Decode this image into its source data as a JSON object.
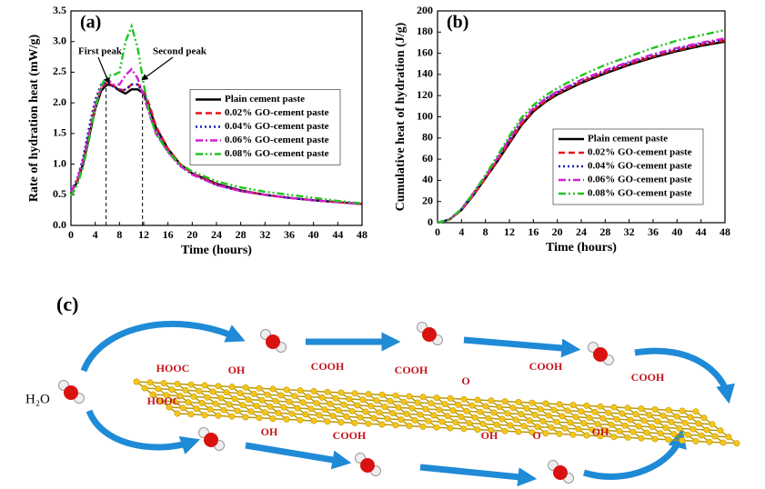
{
  "chart_data": [
    {
      "type": "line",
      "panel": "(a)",
      "ylabel": "Rate of hydration heat (mW/g)",
      "xlabel": "Time (hours)",
      "xlim": [
        0,
        48
      ],
      "xticks": [
        0,
        4,
        8,
        12,
        16,
        20,
        24,
        28,
        32,
        36,
        40,
        44,
        48
      ],
      "ylim": [
        0,
        3.5
      ],
      "yticks": [
        {
          "value": 0,
          "label": "0.0"
        },
        0.5,
        {
          "value": 1,
          "label": "1.0"
        },
        1.5,
        {
          "value": 2,
          "label": "2.0"
        },
        2.5,
        {
          "value": 3,
          "label": "3.0"
        },
        3.5
      ],
      "legend": "center right",
      "annotations": [
        "First peak",
        "Second peak"
      ],
      "vlines": [
        5.8,
        11.8
      ],
      "x": [
        0,
        1,
        2,
        3,
        4,
        5,
        6,
        7,
        8,
        9,
        10,
        11,
        12,
        13,
        14,
        16,
        18,
        20,
        24,
        28,
        32,
        36,
        40,
        44,
        48
      ],
      "series": [
        {
          "name": "Plain cement paste",
          "color": "#000000",
          "style": "solid",
          "values": [
            0.55,
            0.7,
            1.0,
            1.45,
            1.9,
            2.2,
            2.3,
            2.28,
            2.2,
            2.15,
            2.22,
            2.22,
            2.15,
            1.9,
            1.6,
            1.25,
            1.0,
            0.85,
            0.68,
            0.57,
            0.5,
            0.45,
            0.41,
            0.38,
            0.35
          ]
        },
        {
          "name": "0.02% GO-cement paste",
          "color": "#e8141c",
          "style": "dashed",
          "values": [
            0.55,
            0.72,
            1.05,
            1.5,
            1.95,
            2.25,
            2.33,
            2.28,
            2.22,
            2.2,
            2.3,
            2.3,
            2.2,
            1.95,
            1.62,
            1.25,
            1.0,
            0.85,
            0.67,
            0.56,
            0.5,
            0.45,
            0.41,
            0.38,
            0.35
          ]
        },
        {
          "name": "0.04% GO-cement paste",
          "color": "#1c1ca8",
          "style": "dotted",
          "values": [
            0.57,
            0.75,
            1.1,
            1.6,
            2.05,
            2.3,
            2.33,
            2.26,
            2.2,
            2.22,
            2.3,
            2.3,
            2.15,
            1.85,
            1.55,
            1.2,
            0.97,
            0.83,
            0.66,
            0.56,
            0.5,
            0.45,
            0.41,
            0.38,
            0.35
          ]
        },
        {
          "name": "0.06% GO-cement paste",
          "color": "#d21fd2",
          "style": "dashdot",
          "values": [
            0.55,
            0.72,
            1.05,
            1.5,
            1.95,
            2.25,
            2.38,
            2.3,
            2.3,
            2.45,
            2.55,
            2.4,
            2.1,
            1.8,
            1.5,
            1.2,
            0.97,
            0.83,
            0.66,
            0.56,
            0.5,
            0.45,
            0.41,
            0.38,
            0.35
          ]
        },
        {
          "name": "0.08% GO-cement paste",
          "color": "#22c422",
          "style": "dashdotdot",
          "values": [
            0.48,
            0.65,
            0.95,
            1.4,
            1.9,
            2.28,
            2.45,
            2.45,
            2.5,
            3.0,
            3.25,
            2.9,
            2.3,
            1.8,
            1.5,
            1.2,
            1.0,
            0.88,
            0.72,
            0.62,
            0.55,
            0.5,
            0.45,
            0.4,
            0.36
          ]
        }
      ]
    },
    {
      "type": "line",
      "panel": "(b)",
      "ylabel": "Cumulative heat of hydration (J/g)",
      "xlabel": "Time (hours)",
      "xlim": [
        0,
        48
      ],
      "xticks": [
        0,
        4,
        8,
        12,
        16,
        20,
        24,
        28,
        32,
        36,
        40,
        44,
        48
      ],
      "ylim": [
        0,
        200
      ],
      "yticks": [
        0,
        20,
        40,
        60,
        80,
        100,
        120,
        140,
        160,
        180,
        200
      ],
      "legend": "lower right",
      "x": [
        0,
        2,
        4,
        6,
        8,
        10,
        12,
        14,
        16,
        18,
        20,
        24,
        28,
        32,
        36,
        40,
        44,
        48
      ],
      "series": [
        {
          "name": "Plain cement paste",
          "color": "#000000",
          "style": "solid",
          "values": [
            0,
            3,
            12,
            26,
            42,
            58,
            75,
            92,
            105,
            114,
            121,
            132,
            141,
            149,
            156,
            162,
            167,
            171
          ]
        },
        {
          "name": "0.02% GO-cement paste",
          "color": "#e8141c",
          "style": "dashed",
          "values": [
            0,
            3,
            12,
            26,
            42,
            59,
            76,
            93,
            106,
            115,
            122,
            133,
            142,
            150,
            157,
            163,
            168,
            172
          ]
        },
        {
          "name": "0.04% GO-cement paste",
          "color": "#1c1ca8",
          "style": "dotted",
          "values": [
            0,
            3,
            13,
            28,
            44,
            61,
            79,
            96,
            108,
            117,
            123,
            134,
            143,
            151,
            158,
            164,
            169,
            173
          ]
        },
        {
          "name": "0.06% GO-cement paste",
          "color": "#d21fd2",
          "style": "dashdot",
          "values": [
            0,
            3,
            13,
            28,
            44,
            61,
            79,
            96,
            108,
            117,
            124,
            135,
            144,
            152,
            159,
            165,
            170,
            174
          ]
        },
        {
          "name": "0.08% GO-cement paste",
          "color": "#22c422",
          "style": "dashdotdot",
          "values": [
            0,
            3,
            13,
            28,
            45,
            63,
            82,
            99,
            111,
            120,
            127,
            139,
            149,
            157,
            165,
            172,
            177,
            182
          ]
        }
      ]
    }
  ],
  "diagram": {
    "panel": "(c)",
    "water": "H₂O",
    "groups": [
      "HOOC",
      "OH",
      "COOH",
      "COOH",
      "O",
      "COOH",
      "COOH",
      "HOOC",
      "OH",
      "COOH",
      "OH",
      "O",
      "OH"
    ]
  }
}
